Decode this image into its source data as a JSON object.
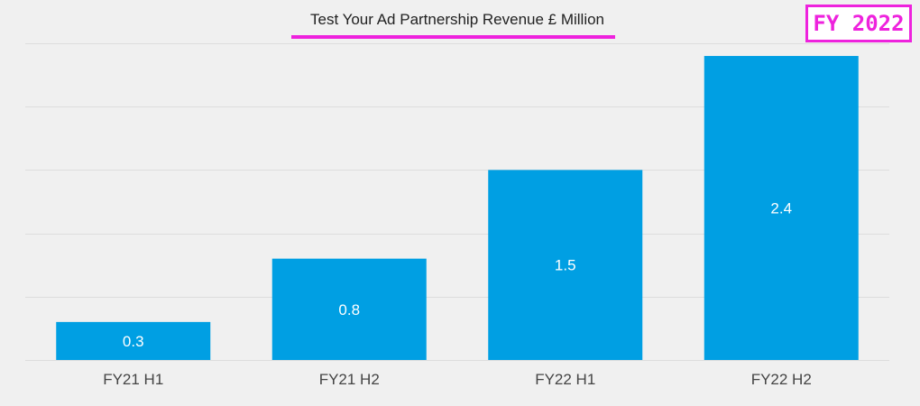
{
  "badge": {
    "text": "FY 2022",
    "color": "#ee22dd"
  },
  "colors": {
    "bar": "#009fe3",
    "title_underline": "#ee22dd",
    "gridline": "#dddddd",
    "background": "#f0f0f0"
  },
  "chart_data": {
    "type": "bar",
    "title": "Test Your Ad Partnership Revenue £ Million",
    "xlabel": "",
    "ylabel": "",
    "categories": [
      "FY21 H1",
      "FY21 H2",
      "FY22 H1",
      "FY22 H2"
    ],
    "values": [
      0.3,
      0.8,
      1.5,
      2.4
    ],
    "data_labels": [
      "0.3",
      "0.8",
      "1.5",
      "2.4"
    ],
    "ylim": [
      0,
      2.5
    ],
    "grid": true,
    "legend": "none",
    "y_tick_labels_shown": false
  }
}
